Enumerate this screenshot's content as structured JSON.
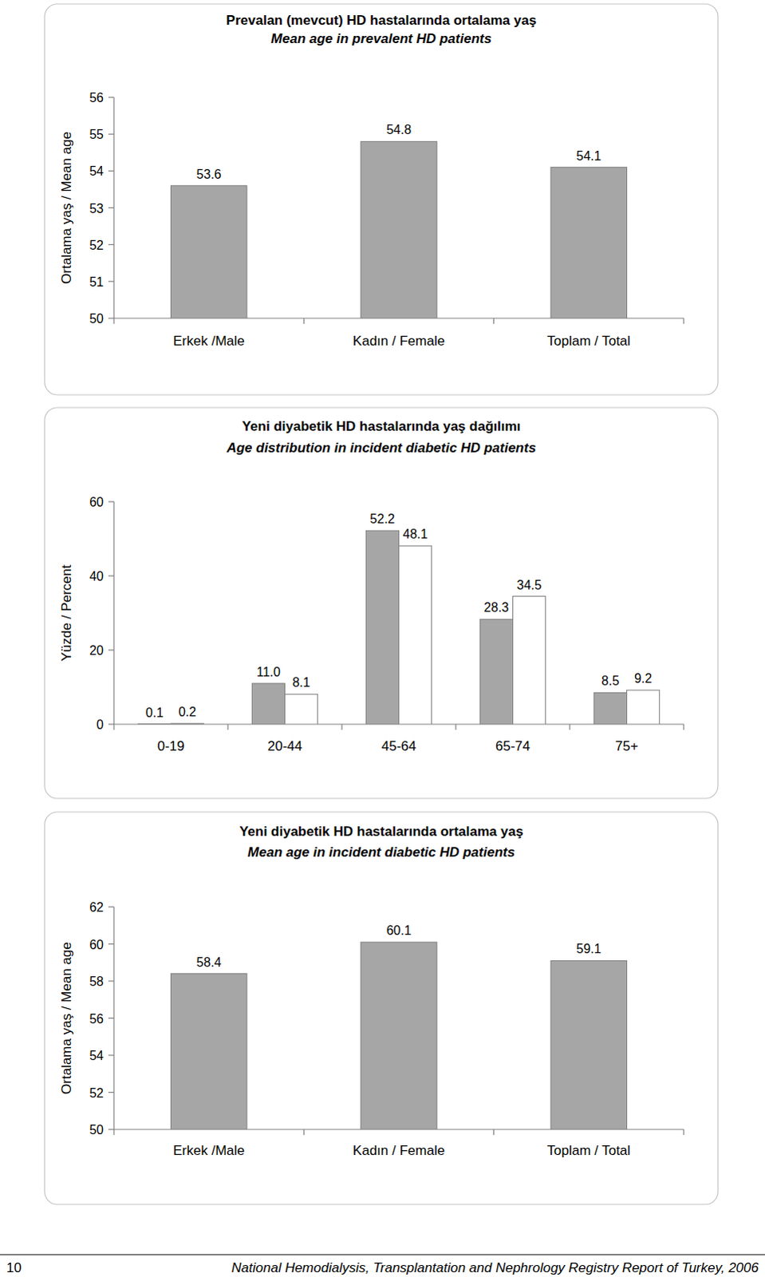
{
  "chart_data": [
    {
      "type": "bar",
      "title": "Prevalan (mevcut) HD hastalarında ortalama yaş",
      "subtitle": "Mean age in prevalent HD patients",
      "ylabel": "Ortalama yaş / Mean age",
      "categories": [
        "Erkek /Male",
        "Kadın / Female",
        "Toplam / Total"
      ],
      "values": [
        53.6,
        54.8,
        54.1
      ],
      "color": "#a6a6a6",
      "ylim": [
        50,
        56
      ],
      "yticks": [
        50,
        51,
        52,
        53,
        54,
        55,
        56
      ],
      "data_labels": true,
      "grid": false
    },
    {
      "type": "bar",
      "title": "Yeni diyabetik HD hastalarında yaş dağılımı",
      "subtitle": "Age distribution in incident diabetic HD patients",
      "ylabel": "Yüzde / Percent",
      "categories": [
        "0-19",
        "20-44",
        "45-64",
        "65-74",
        "75+"
      ],
      "series": [
        {
          "color": "#a6a6a6",
          "values": [
            0.1,
            11.0,
            52.2,
            28.3,
            8.5
          ],
          "value_labels": [
            "0.1",
            "11.0",
            "52.2",
            "28.3",
            "8.5"
          ]
        },
        {
          "color": "#ffffff",
          "values": [
            0.2,
            8.1,
            48.1,
            34.5,
            9.2
          ]
        }
      ],
      "ylim": [
        0,
        60
      ],
      "yticks": [
        0,
        20,
        40,
        60
      ],
      "data_labels": true,
      "grid": false
    },
    {
      "type": "bar",
      "title": "Yeni diyabetik HD hastalarında ortalama yaş",
      "subtitle": "Mean age in incident diabetic HD patients",
      "ylabel": "Ortalama yaş / Mean age",
      "categories": [
        "Erkek /Male",
        "Kadın / Female",
        "Toplam / Total"
      ],
      "values": [
        58.4,
        60.1,
        59.1
      ],
      "color": "#a6a6a6",
      "ylim": [
        50,
        62
      ],
      "yticks": [
        50,
        52,
        54,
        56,
        58,
        60,
        62
      ],
      "data_labels": true,
      "grid": false
    }
  ],
  "footer": {
    "page": 10,
    "text": "National Hemodialysis, Transplantation and Nephrology Registry Report of Turkey, 2006"
  }
}
